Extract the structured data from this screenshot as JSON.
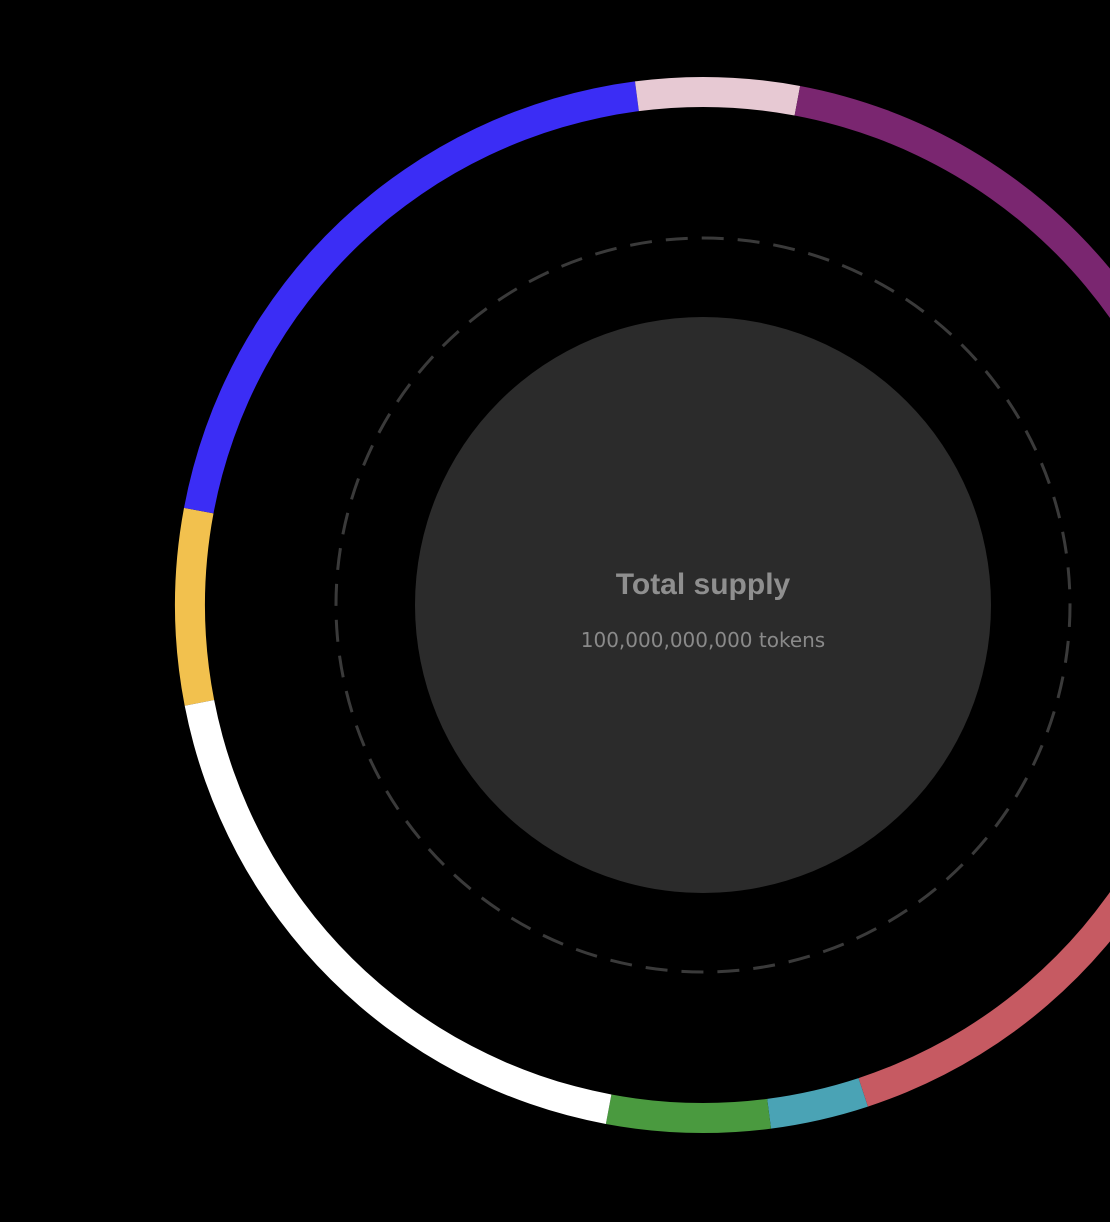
{
  "chart_data": {
    "type": "pie",
    "variant": "donut",
    "center_title": "Total supply",
    "center_subtitle": "100,000,000,000 tokens",
    "colors": {
      "background": "#000000",
      "center_disc": "#2b2b2b",
      "center_text": "#8f8f8f",
      "dashed_ring": "#3a3a3a"
    },
    "slices": [
      {
        "color": "#f2c14e",
        "pct": 6
      },
      {
        "color": "#3b2df5",
        "pct": 20
      },
      {
        "color": "#e7c9d3",
        "pct": 5
      },
      {
        "color": "#7a2670",
        "pct": 22
      },
      {
        "color": "#c65a62",
        "pct": 20
      },
      {
        "color": "#4aa3b5",
        "pct": 3
      },
      {
        "color": "#4a9a3f",
        "pct": 5
      },
      {
        "color": "#ffffff",
        "pct": 19
      }
    ]
  }
}
